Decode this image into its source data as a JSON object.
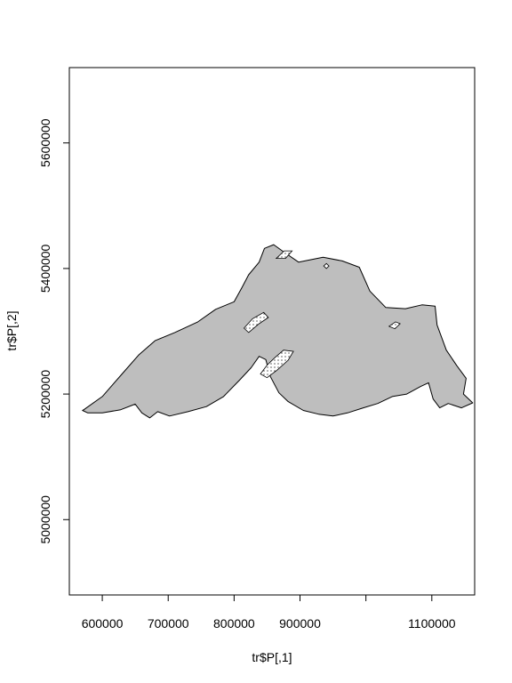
{
  "chart_data": {
    "type": "map",
    "title": "",
    "xlabel": "tr$P[,1]",
    "ylabel": "tr$P[,2]",
    "xlim": [
      550000,
      1165000
    ],
    "ylim": [
      4880000,
      5720000
    ],
    "x_ticks": [
      600000,
      700000,
      800000,
      900000,
      1000000,
      1100000
    ],
    "x_tick_labels": [
      "600000",
      "700000",
      "800000",
      "900000",
      "",
      "1100000"
    ],
    "y_ticks": [
      5000000,
      5200000,
      5400000,
      5600000
    ],
    "y_tick_labels": [
      "5000000",
      "5200000",
      "5400000",
      "5600000"
    ],
    "fill_color": "#bebebe",
    "outline_color": "#000000",
    "grid": false,
    "lake_outline": [
      [
        572000,
        5175000
      ],
      [
        600000,
        5196000
      ],
      [
        630000,
        5232000
      ],
      [
        655000,
        5262000
      ],
      [
        680000,
        5285000
      ],
      [
        710000,
        5298000
      ],
      [
        745000,
        5315000
      ],
      [
        772000,
        5335000
      ],
      [
        800000,
        5347000
      ],
      [
        812000,
        5370000
      ],
      [
        822000,
        5390000
      ],
      [
        838000,
        5410000
      ],
      [
        846000,
        5432000
      ],
      [
        860000,
        5438000
      ],
      [
        876000,
        5426000
      ],
      [
        898000,
        5410000
      ],
      [
        935000,
        5418000
      ],
      [
        964000,
        5412000
      ],
      [
        990000,
        5402000
      ],
      [
        1006000,
        5364000
      ],
      [
        1030000,
        5338000
      ],
      [
        1060000,
        5336000
      ],
      [
        1085000,
        5342000
      ],
      [
        1105000,
        5340000
      ],
      [
        1108000,
        5310000
      ],
      [
        1122000,
        5270000
      ],
      [
        1138000,
        5245000
      ],
      [
        1152000,
        5225000
      ],
      [
        1148000,
        5200000
      ],
      [
        1162000,
        5186000
      ],
      [
        1145000,
        5178000
      ],
      [
        1125000,
        5185000
      ],
      [
        1112000,
        5178000
      ],
      [
        1102000,
        5192000
      ],
      [
        1095000,
        5218000
      ],
      [
        1083000,
        5212000
      ],
      [
        1062000,
        5200000
      ],
      [
        1040000,
        5196000
      ],
      [
        1018000,
        5185000
      ],
      [
        996000,
        5178000
      ],
      [
        972000,
        5170000
      ],
      [
        950000,
        5165000
      ],
      [
        928000,
        5168000
      ],
      [
        905000,
        5174000
      ],
      [
        882000,
        5188000
      ],
      [
        868000,
        5202000
      ],
      [
        855000,
        5228000
      ],
      [
        848000,
        5255000
      ],
      [
        838000,
        5260000
      ],
      [
        826000,
        5242000
      ],
      [
        808000,
        5222000
      ],
      [
        784000,
        5196000
      ],
      [
        758000,
        5180000
      ],
      [
        730000,
        5172000
      ],
      [
        702000,
        5165000
      ],
      [
        684000,
        5172000
      ],
      [
        672000,
        5162000
      ],
      [
        660000,
        5170000
      ],
      [
        650000,
        5184000
      ],
      [
        628000,
        5175000
      ],
      [
        600000,
        5170000
      ],
      [
        578000,
        5170000
      ],
      [
        570000,
        5174000
      ]
    ],
    "islands": [
      {
        "points": [
          [
            822000,
            5298000
          ],
          [
            838000,
            5312000
          ],
          [
            852000,
            5322000
          ],
          [
            845000,
            5330000
          ],
          [
            828000,
            5320000
          ],
          [
            815000,
            5305000
          ]
        ]
      },
      {
        "points": [
          [
            840000,
            5232000
          ],
          [
            850000,
            5246000
          ],
          [
            862000,
            5258000
          ],
          [
            875000,
            5270000
          ],
          [
            890000,
            5268000
          ],
          [
            882000,
            5254000
          ],
          [
            865000,
            5238000
          ],
          [
            850000,
            5226000
          ]
        ]
      },
      {
        "points": [
          [
            1035000,
            5308000
          ],
          [
            1045000,
            5315000
          ],
          [
            1052000,
            5312000
          ],
          [
            1044000,
            5304000
          ]
        ]
      },
      {
        "points": [
          [
            864000,
            5416000
          ],
          [
            876000,
            5428000
          ],
          [
            888000,
            5428000
          ],
          [
            878000,
            5416000
          ]
        ]
      },
      {
        "points": [
          [
            936000,
            5404000
          ],
          [
            940000,
            5408000
          ],
          [
            944000,
            5404000
          ],
          [
            940000,
            5400000
          ]
        ]
      }
    ]
  }
}
